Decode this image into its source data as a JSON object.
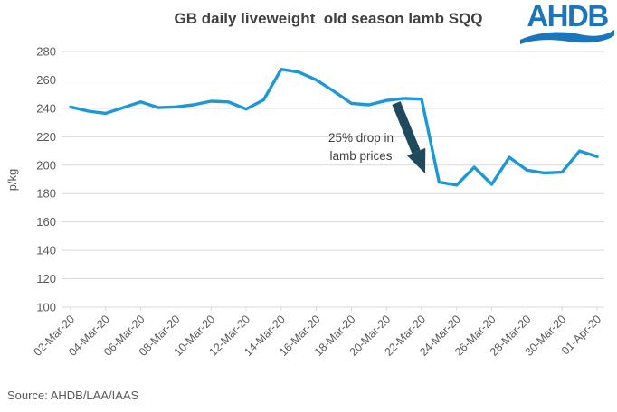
{
  "header": {
    "title": "GB daily liveweight  old season lamb SQQ"
  },
  "logo": {
    "text": "AHDB",
    "color": "#1b75bc"
  },
  "source": {
    "text": "Source: AHDB/LAA/IAAS"
  },
  "chart_data": {
    "type": "line",
    "title": "GB daily liveweight  old season lamb SQQ",
    "xlabel": "",
    "ylabel": "p/kg",
    "ylim": [
      100,
      280
    ],
    "ytick_step": 20,
    "grid": true,
    "legend_position": "none",
    "xtick_every": 2,
    "line_color": "#1b98d8",
    "grid_color": "#d9d9d9",
    "label_color": "#595959",
    "x": [
      "02-Mar-20",
      "03-Mar-20",
      "04-Mar-20",
      "05-Mar-20",
      "06-Mar-20",
      "07-Mar-20",
      "08-Mar-20",
      "09-Mar-20",
      "10-Mar-20",
      "11-Mar-20",
      "12-Mar-20",
      "13-Mar-20",
      "14-Mar-20",
      "15-Mar-20",
      "16-Mar-20",
      "17-Mar-20",
      "18-Mar-20",
      "19-Mar-20",
      "20-Mar-20",
      "21-Mar-20",
      "22-Mar-20",
      "23-Mar-20",
      "24-Mar-20",
      "25-Mar-20",
      "26-Mar-20",
      "27-Mar-20",
      "28-Mar-20",
      "29-Mar-20",
      "30-Mar-20",
      "31-Mar-20",
      "01-Apr-20"
    ],
    "series": [
      {
        "name": "GB daily liveweight old season lamb SQQ",
        "values": [
          241,
          238,
          236.5,
          240.5,
          244.5,
          240.5,
          241,
          242.5,
          245,
          244.5,
          239.5,
          246,
          267.5,
          265.5,
          260,
          252,
          243.5,
          242.5,
          245.5,
          247,
          246.5,
          188,
          186,
          198.5,
          186.5,
          205.5,
          196.5,
          194.5,
          195,
          210,
          206
        ]
      }
    ],
    "annotation": {
      "text_line1": "25% drop in",
      "text_line2": "lamb prices",
      "text_color": "#404040",
      "arrow_color": "#1f4a5e"
    }
  }
}
